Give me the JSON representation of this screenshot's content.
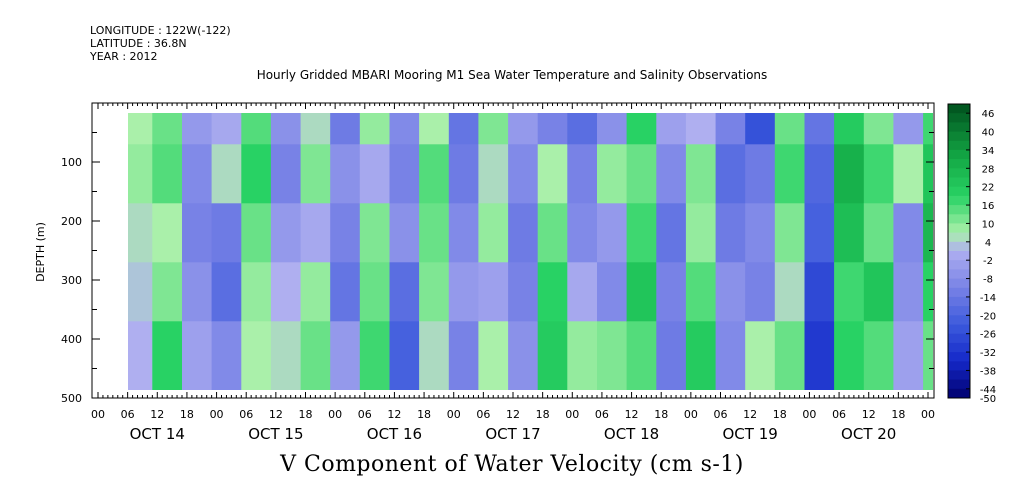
{
  "meta": {
    "longitude": "LONGITUDE : 122W(-122)",
    "latitude": "LATITUDE : 36.8N",
    "year": "YEAR : 2012"
  },
  "chart_data": {
    "type": "heatmap",
    "title": "Hourly Gridded MBARI Mooring M1 Sea Water Temperature and Salinity Observations",
    "caption": "V Component of Water Velocity (cm s-1)",
    "ylabel": "DEPTH (m)",
    "xlabel": "",
    "ylim": [
      500,
      0
    ],
    "y_ticks": [
      "100",
      "200",
      "300",
      "400",
      "500"
    ],
    "x_hour_ticks": [
      "00",
      "06",
      "12",
      "18",
      "00",
      "06",
      "12",
      "18",
      "00",
      "06",
      "12",
      "18",
      "00",
      "06",
      "12",
      "18",
      "00",
      "06",
      "12",
      "18",
      "00",
      "06",
      "12",
      "18",
      "00",
      "06",
      "12",
      "18",
      "00"
    ],
    "x_day_labels": [
      "OCT 14",
      "OCT 15",
      "OCT 16",
      "OCT 17",
      "OCT 18",
      "OCT 19",
      "OCT 20"
    ],
    "colorbar": {
      "labels": [
        "46",
        "40",
        "34",
        "28",
        "22",
        "16",
        "10",
        "4",
        "-2",
        "-8",
        "-14",
        "-20",
        "-26",
        "-32",
        "-38",
        "-44",
        "-50"
      ],
      "range": [
        -50,
        46
      ]
    },
    "series": [
      {
        "hour": 8,
        "v": [
          4,
          6,
          2,
          0,
          -2
        ]
      },
      {
        "hour": 14,
        "v": [
          10,
          12,
          4,
          8,
          16
        ]
      },
      {
        "hour": 20,
        "v": [
          -8,
          -12,
          -14,
          -10,
          -6
        ]
      },
      {
        "hour": 26,
        "v": [
          -4,
          2,
          -16,
          -20,
          -12
        ]
      },
      {
        "hour": 32,
        "v": [
          12,
          16,
          10,
          6,
          4
        ]
      },
      {
        "hour": 38,
        "v": [
          -10,
          -14,
          -8,
          -2,
          2
        ]
      },
      {
        "hour": 44,
        "v": [
          2,
          8,
          -4,
          6,
          10
        ]
      },
      {
        "hour": 50,
        "v": [
          -16,
          -10,
          -14,
          -18,
          -8
        ]
      },
      {
        "hour": 56,
        "v": [
          6,
          -4,
          8,
          10,
          14
        ]
      },
      {
        "hour": 62,
        "v": [
          -12,
          -14,
          -10,
          -20,
          -24
        ]
      },
      {
        "hour": 68,
        "v": [
          4,
          12,
          10,
          8,
          2
        ]
      },
      {
        "hour": 74,
        "v": [
          -18,
          -16,
          -12,
          -8,
          -14
        ]
      },
      {
        "hour": 80,
        "v": [
          8,
          2,
          6,
          -6,
          4
        ]
      },
      {
        "hour": 86,
        "v": [
          -8,
          -12,
          -16,
          -14,
          -10
        ]
      },
      {
        "hour": 92,
        "v": [
          -14,
          4,
          10,
          16,
          18
        ]
      },
      {
        "hour": 98,
        "v": [
          -20,
          -14,
          -12,
          -4,
          6
        ]
      },
      {
        "hour": 104,
        "v": [
          -10,
          6,
          -8,
          -12,
          8
        ]
      },
      {
        "hour": 110,
        "v": [
          16,
          10,
          14,
          20,
          12
        ]
      },
      {
        "hour": 116,
        "v": [
          -6,
          -12,
          -18,
          -14,
          -16
        ]
      },
      {
        "hour": 122,
        "v": [
          -2,
          8,
          6,
          12,
          18
        ]
      },
      {
        "hour": 128,
        "v": [
          -14,
          -20,
          -16,
          -10,
          -12
        ]
      },
      {
        "hour": 134,
        "v": [
          -28,
          -16,
          -12,
          -14,
          4
        ]
      },
      {
        "hour": 140,
        "v": [
          10,
          14,
          8,
          2,
          10
        ]
      },
      {
        "hour": 146,
        "v": [
          -18,
          -22,
          -24,
          -30,
          -34
        ]
      },
      {
        "hour": 152,
        "v": [
          18,
          26,
          22,
          14,
          16
        ]
      },
      {
        "hour": 158,
        "v": [
          8,
          14,
          10,
          20,
          12
        ]
      },
      {
        "hour": 164,
        "v": [
          -8,
          4,
          -12,
          -10,
          -6
        ]
      },
      {
        "hour": 170,
        "v": [
          14,
          20,
          24,
          16,
          10
        ]
      },
      {
        "hour": 176,
        "v": [
          4,
          -6,
          8,
          12,
          14
        ]
      },
      {
        "hour": 182,
        "v": [
          -10,
          -14,
          -16,
          -18,
          -12
        ]
      },
      {
        "hour": 188,
        "v": [
          22,
          24,
          18,
          20,
          16
        ]
      },
      {
        "hour": 194,
        "v": [
          10,
          14,
          18,
          12,
          10
        ]
      },
      {
        "hour": 200,
        "v": [
          -4,
          -8,
          -12,
          -16,
          -14
        ]
      },
      {
        "hour": 206,
        "v": [
          12,
          14,
          4,
          -6,
          -10
        ]
      }
    ]
  }
}
